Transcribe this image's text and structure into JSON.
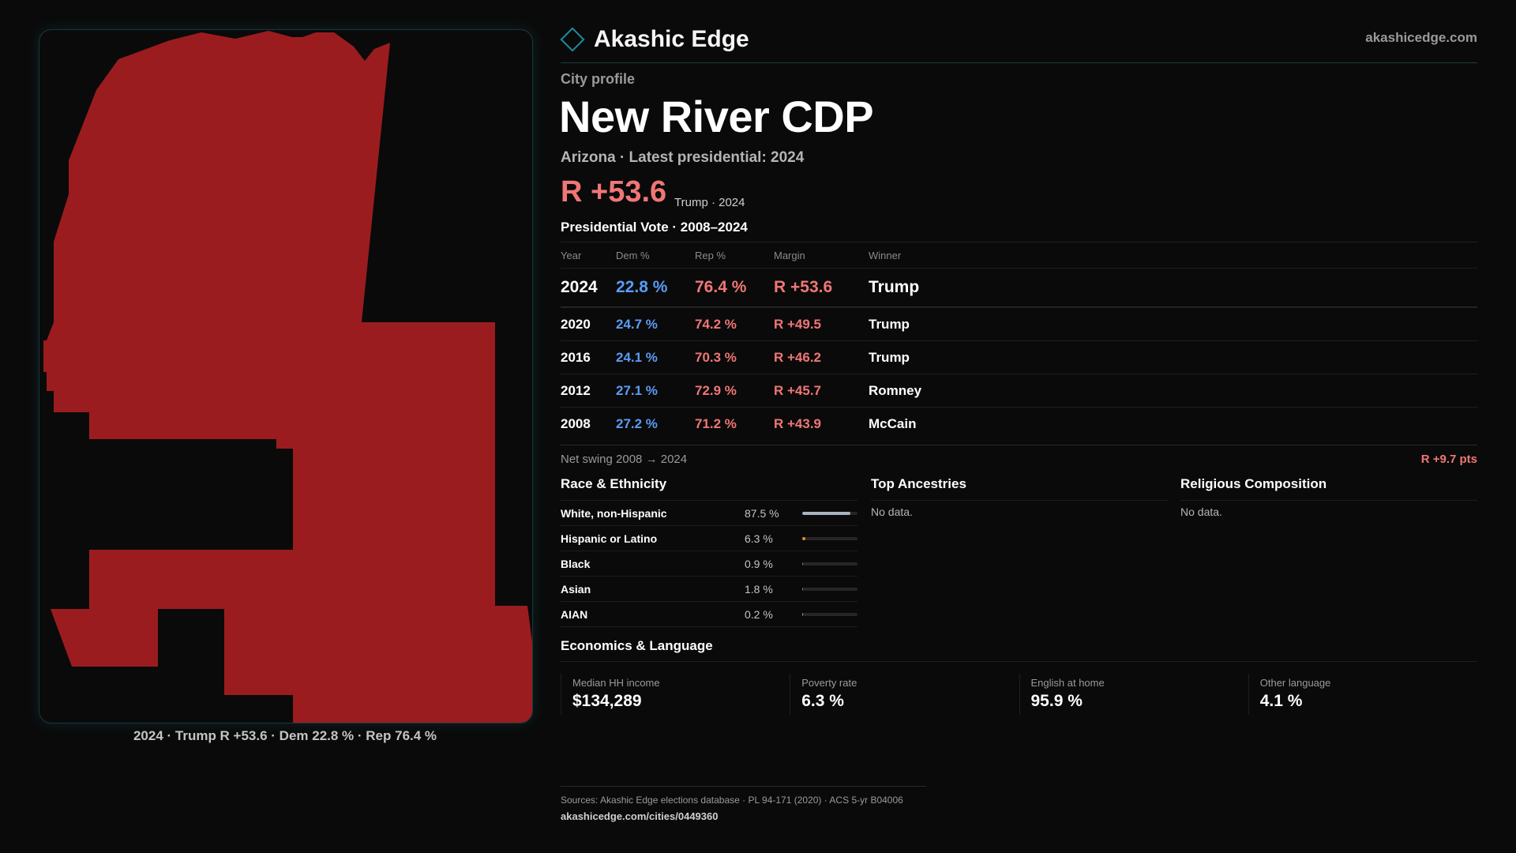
{
  "colors": {
    "rep": "#f07676",
    "dem": "#5b9cf5",
    "map_fill": "#9b1c1f",
    "accent": "#1a8ea0"
  },
  "header": {
    "brand": "Akashic Edge",
    "brand_icon": "diamond-outline-icon",
    "site": "akashicedge.com"
  },
  "profile": {
    "eyebrow": "City profile",
    "title": "New River CDP",
    "subtitle": "Arizona · Latest presidential: 2024",
    "headline_margin": "R +53.6",
    "headline_note": "Trump · 2024"
  },
  "map": {
    "caption": "2024 · Trump R +53.6 · Dem 22.8 % · Rep 76.4 %"
  },
  "vote_table": {
    "title": "Presidential Vote · 2008–2024",
    "headers": [
      "Year",
      "Dem %",
      "Rep %",
      "Margin",
      "Winner"
    ],
    "rows": [
      {
        "year": "2024",
        "dem": "22.8 %",
        "rep": "76.4 %",
        "margin": "R +53.6",
        "winner": "Trump"
      },
      {
        "year": "2020",
        "dem": "24.7 %",
        "rep": "74.2 %",
        "margin": "R +49.5",
        "winner": "Trump"
      },
      {
        "year": "2016",
        "dem": "24.1 %",
        "rep": "70.3 %",
        "margin": "R +46.2",
        "winner": "Trump"
      },
      {
        "year": "2012",
        "dem": "27.1 %",
        "rep": "72.9 %",
        "margin": "R +45.7",
        "winner": "Romney"
      },
      {
        "year": "2008",
        "dem": "27.2 %",
        "rep": "71.2 %",
        "margin": "R +43.9",
        "winner": "McCain"
      }
    ]
  },
  "swing": {
    "label": "Net swing 2008 → 2024",
    "value": "R +9.7 pts"
  },
  "race": {
    "title": "Race & Ethnicity",
    "rows": [
      {
        "label": "White, non-Hispanic",
        "value": "87.5 %",
        "pct": 87.5,
        "color": "#a9b4c2"
      },
      {
        "label": "Hispanic or Latino",
        "value": "6.3 %",
        "pct": 6.3,
        "color": "#e8912d"
      },
      {
        "label": "Black",
        "value": "0.9 %",
        "pct": 0.9,
        "color": "#8a6ad0"
      },
      {
        "label": "Asian",
        "value": "1.8 %",
        "pct": 1.8,
        "color": "#2fb39a"
      },
      {
        "label": "AIAN",
        "value": "0.2 %",
        "pct": 0.2,
        "color": "#c0c050"
      }
    ]
  },
  "ancestries": {
    "title": "Top Ancestries",
    "empty": "No data."
  },
  "religion": {
    "title": "Religious Composition",
    "empty": "No data."
  },
  "economics": {
    "title": "Economics & Language",
    "cards": [
      {
        "label": "Median HH income",
        "value": "$134,289"
      },
      {
        "label": "Poverty rate",
        "value": "6.3 %"
      },
      {
        "label": "English at home",
        "value": "95.9 %"
      },
      {
        "label": "Other language",
        "value": "4.1 %"
      }
    ]
  },
  "footer": {
    "sources": "Sources: Akashic Edge elections database · PL 94-171 (2020) · ACS 5-yr B04006",
    "url": "akashicedge.com/cities/0449360"
  }
}
